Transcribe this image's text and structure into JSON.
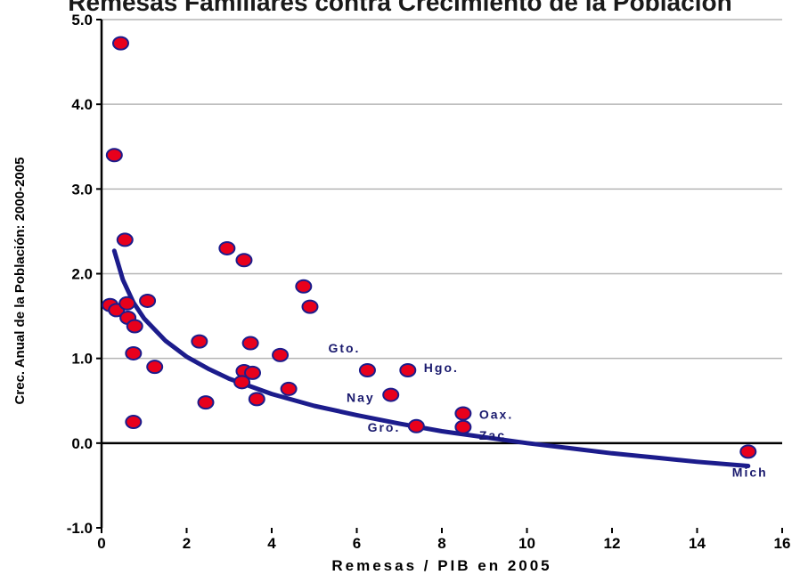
{
  "chart_data": {
    "type": "scatter",
    "title": "Remesas Familiares contra Crecimiento de la Población",
    "xlabel": "Remesas / PIB en 2005",
    "ylabel": "Crec. Anual de la Población: 2000-2005",
    "xlim": [
      0,
      16
    ],
    "ylim": [
      -1.0,
      5.0
    ],
    "x_ticks": [
      "0",
      "2",
      "4",
      "6",
      "8",
      "10",
      "12",
      "14",
      "16"
    ],
    "y_ticks": [
      "-1.0",
      "0.0",
      "1.0",
      "2.0",
      "3.0",
      "4.0",
      "5.0"
    ],
    "grid": "horizontal",
    "marker_color": "#e8001c",
    "marker_edge_color": "#1c1c8c",
    "trend_color": "#1c1c8c",
    "points": [
      {
        "x": 0.45,
        "y": 4.72
      },
      {
        "x": 0.3,
        "y": 3.4
      },
      {
        "x": 0.55,
        "y": 2.4
      },
      {
        "x": 0.2,
        "y": 1.63
      },
      {
        "x": 0.35,
        "y": 1.57
      },
      {
        "x": 0.6,
        "y": 1.65
      },
      {
        "x": 0.62,
        "y": 1.48
      },
      {
        "x": 0.78,
        "y": 1.38
      },
      {
        "x": 1.08,
        "y": 1.68
      },
      {
        "x": 0.75,
        "y": 1.06
      },
      {
        "x": 1.25,
        "y": 0.9
      },
      {
        "x": 0.75,
        "y": 0.25
      },
      {
        "x": 2.3,
        "y": 1.2
      },
      {
        "x": 2.45,
        "y": 0.48
      },
      {
        "x": 2.95,
        "y": 2.3
      },
      {
        "x": 3.35,
        "y": 2.16
      },
      {
        "x": 3.5,
        "y": 1.18
      },
      {
        "x": 3.35,
        "y": 0.85
      },
      {
        "x": 3.55,
        "y": 0.83
      },
      {
        "x": 3.3,
        "y": 0.72
      },
      {
        "x": 3.65,
        "y": 0.52
      },
      {
        "x": 4.2,
        "y": 1.04
      },
      {
        "x": 4.4,
        "y": 0.64
      },
      {
        "x": 4.75,
        "y": 1.85
      },
      {
        "x": 4.9,
        "y": 1.61
      },
      {
        "x": 6.25,
        "y": 0.86
      },
      {
        "x": 6.8,
        "y": 0.57
      },
      {
        "x": 7.2,
        "y": 0.86
      },
      {
        "x": 7.4,
        "y": 0.2
      },
      {
        "x": 8.5,
        "y": 0.35
      },
      {
        "x": 8.5,
        "y": 0.19
      },
      {
        "x": 15.2,
        "y": -0.1
      }
    ],
    "trend": {
      "type": "logarithmic",
      "x": [
        0.3,
        0.5,
        0.75,
        1.0,
        1.5,
        2.0,
        2.5,
        3.0,
        4.0,
        5.0,
        6.0,
        7.0,
        8.0,
        9.0,
        10.0,
        11.0,
        12.0,
        13.0,
        14.0,
        15.2
      ],
      "y": [
        2.27,
        1.93,
        1.66,
        1.47,
        1.21,
        1.02,
        0.88,
        0.76,
        0.58,
        0.44,
        0.33,
        0.23,
        0.14,
        0.07,
        0.0,
        -0.06,
        -0.12,
        -0.17,
        -0.22,
        -0.27
      ]
    },
    "annotations": [
      {
        "text": "Gto.",
        "x": 6.25,
        "y": 0.86
      },
      {
        "text": "Hgo.",
        "x": 7.2,
        "y": 0.86
      },
      {
        "text": "Nay",
        "x": 6.8,
        "y": 0.57
      },
      {
        "text": "Gro.",
        "x": 7.4,
        "y": 0.2
      },
      {
        "text": "Oax.",
        "x": 8.5,
        "y": 0.35
      },
      {
        "text": "Zac",
        "x": 8.5,
        "y": 0.19
      },
      {
        "text": "Mich",
        "x": 15.2,
        "y": -0.1
      }
    ]
  }
}
